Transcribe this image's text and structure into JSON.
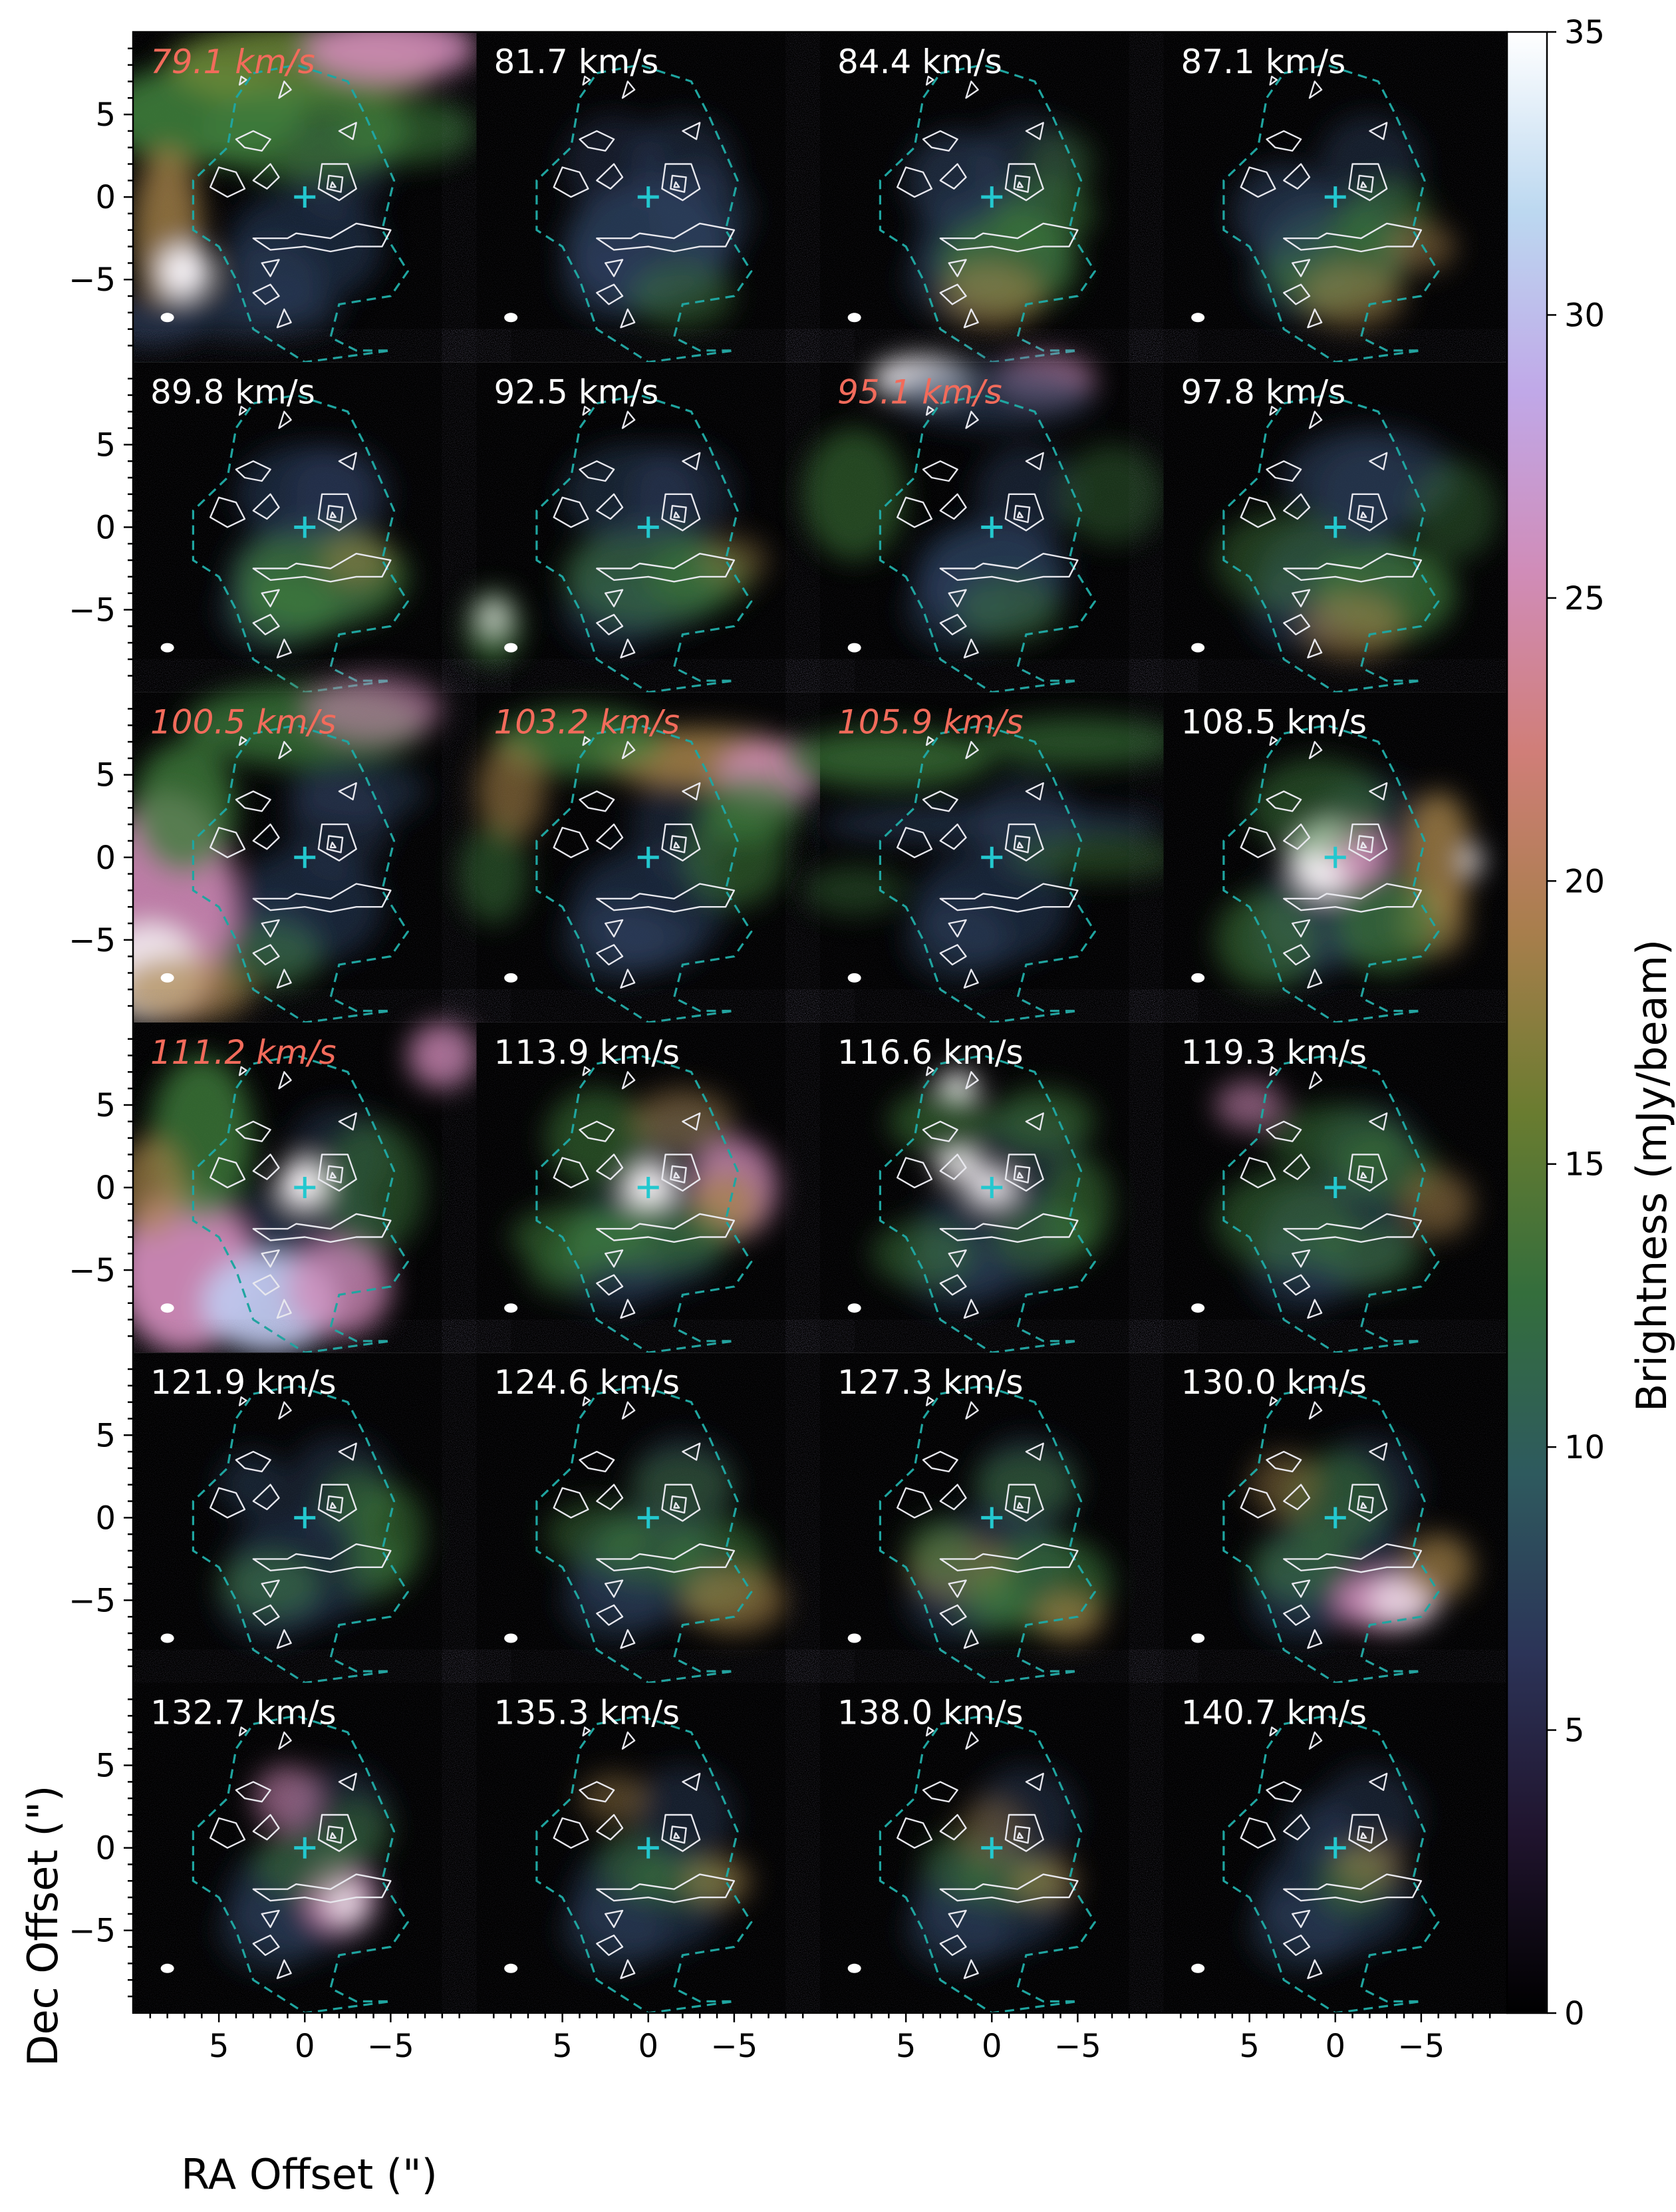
{
  "chart_data": {
    "type": "heatmap",
    "layout": "channel-map grid, 6 rows x 4 columns",
    "panels": [
      {
        "label": "79.1 km/s",
        "label_color": "#f26b5b",
        "row": 0,
        "col": 0
      },
      {
        "label": "81.7 km/s",
        "label_color": "#ffffff",
        "row": 0,
        "col": 1
      },
      {
        "label": "84.4 km/s",
        "label_color": "#ffffff",
        "row": 0,
        "col": 2
      },
      {
        "label": "87.1 km/s",
        "label_color": "#ffffff",
        "row": 0,
        "col": 3
      },
      {
        "label": "89.8 km/s",
        "label_color": "#ffffff",
        "row": 1,
        "col": 0
      },
      {
        "label": "92.5 km/s",
        "label_color": "#ffffff",
        "row": 1,
        "col": 1
      },
      {
        "label": "95.1 km/s",
        "label_color": "#f26b5b",
        "row": 1,
        "col": 2
      },
      {
        "label": "97.8 km/s",
        "label_color": "#ffffff",
        "row": 1,
        "col": 3
      },
      {
        "label": "100.5 km/s",
        "label_color": "#f26b5b",
        "row": 2,
        "col": 0
      },
      {
        "label": "103.2 km/s",
        "label_color": "#f26b5b",
        "row": 2,
        "col": 1
      },
      {
        "label": "105.9 km/s",
        "label_color": "#f26b5b",
        "row": 2,
        "col": 2
      },
      {
        "label": "108.5 km/s",
        "label_color": "#ffffff",
        "row": 2,
        "col": 3
      },
      {
        "label": "111.2 km/s",
        "label_color": "#f26b5b",
        "row": 3,
        "col": 0
      },
      {
        "label": "113.9 km/s",
        "label_color": "#ffffff",
        "row": 3,
        "col": 1
      },
      {
        "label": "116.6 km/s",
        "label_color": "#ffffff",
        "row": 3,
        "col": 2
      },
      {
        "label": "119.3 km/s",
        "label_color": "#ffffff",
        "row": 3,
        "col": 3
      },
      {
        "label": "121.9 km/s",
        "label_color": "#ffffff",
        "row": 4,
        "col": 0
      },
      {
        "label": "124.6 km/s",
        "label_color": "#ffffff",
        "row": 4,
        "col": 1
      },
      {
        "label": "127.3 km/s",
        "label_color": "#ffffff",
        "row": 4,
        "col": 2
      },
      {
        "label": "130.0 km/s",
        "label_color": "#ffffff",
        "row": 4,
        "col": 3
      },
      {
        "label": "132.7 km/s",
        "label_color": "#ffffff",
        "row": 5,
        "col": 0
      },
      {
        "label": "135.3 km/s",
        "label_color": "#ffffff",
        "row": 5,
        "col": 1
      },
      {
        "label": "138.0 km/s",
        "label_color": "#ffffff",
        "row": 5,
        "col": 2
      },
      {
        "label": "140.7 km/s",
        "label_color": "#ffffff",
        "row": 5,
        "col": 3
      }
    ],
    "x_axis": {
      "label": "RA Offset (\")",
      "lim": [
        10,
        -10
      ],
      "inverted": true,
      "ticks": [
        5,
        0,
        -5
      ],
      "tick_labels": [
        "5",
        "0",
        "−5"
      ]
    },
    "y_axis": {
      "label": "Dec Offset (\")",
      "lim": [
        -10,
        10
      ],
      "ticks": [
        5,
        0,
        -5
      ],
      "tick_labels": [
        "5",
        "0",
        "−5"
      ]
    },
    "colorbar": {
      "label": "Brightness (mJy/beam)",
      "range": [
        0,
        35
      ],
      "ticks": [
        0,
        5,
        10,
        15,
        20,
        25,
        30,
        35
      ],
      "colormap": [
        "#000000",
        "#20142e",
        "#2c3458",
        "#2e5a5e",
        "#346e3c",
        "#6a7c30",
        "#a87e4c",
        "#d07e78",
        "#d08cb8",
        "#c0a8e8",
        "#bcd8f0",
        "#ffffff"
      ]
    },
    "overlays": [
      "white solid contours",
      "teal dashed outer contour",
      "cyan cross at origin",
      "white beam ellipse"
    ],
    "colors": {
      "highlight_label": "#f26b5b",
      "normal_label": "#ffffff",
      "dashed_contour": "#1fa5a0",
      "center_cross": "#23c8cf"
    }
  }
}
